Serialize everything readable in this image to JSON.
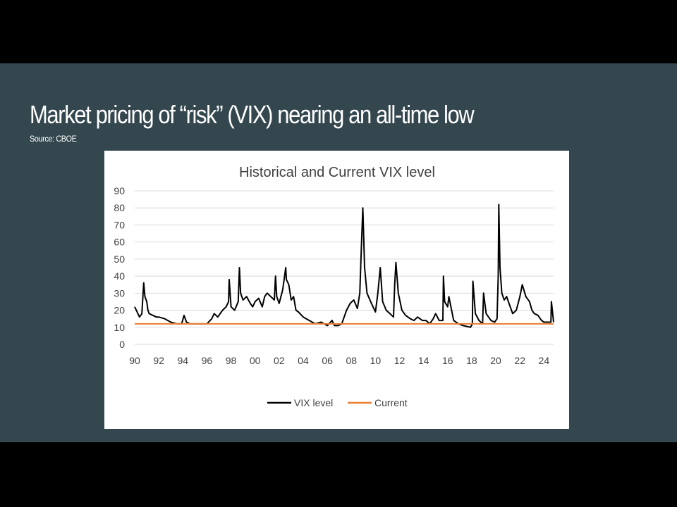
{
  "slide": {
    "title": "Market pricing of “risk” (VIX) nearing an all-time low",
    "source": "Source: CBOE"
  },
  "colors": {
    "background": "#34474f",
    "vix_line": "#000000",
    "current_line": "#ed7d31",
    "gridline": "#d9d9d9"
  },
  "chart_data": {
    "type": "line",
    "title": "Historical and Current VIX level",
    "xlabel": "",
    "ylabel": "",
    "ylim": [
      0,
      90
    ],
    "xlim": [
      1990,
      2024.8
    ],
    "yticks": [
      "0",
      "10",
      "20",
      "30",
      "40",
      "50",
      "60",
      "70",
      "80",
      "90"
    ],
    "xticks": [
      "90",
      "92",
      "94",
      "96",
      "98",
      "00",
      "02",
      "04",
      "06",
      "08",
      "10",
      "12",
      "14",
      "16",
      "18",
      "20",
      "22",
      "24"
    ],
    "grid": true,
    "legend": "bottom",
    "series": [
      {
        "name": "VIX level",
        "color": "#000000",
        "x": [
          1990.0,
          1990.2,
          1990.4,
          1990.6,
          1990.7,
          1990.75,
          1990.85,
          1991.0,
          1991.1,
          1991.2,
          1991.5,
          1991.8,
          1992.0,
          1992.5,
          1993.0,
          1993.5,
          1993.9,
          1994.1,
          1994.3,
          1994.6,
          1995.0,
          1995.5,
          1996.0,
          1996.4,
          1996.6,
          1996.9,
          1997.3,
          1997.6,
          1997.8,
          1997.85,
          1998.0,
          1998.3,
          1998.6,
          1998.7,
          1998.8,
          1999.0,
          1999.3,
          1999.6,
          1999.8,
          2000.0,
          2000.3,
          2000.6,
          2000.8,
          2001.0,
          2001.3,
          2001.6,
          2001.7,
          2001.8,
          2002.0,
          2002.3,
          2002.55,
          2002.6,
          2002.8,
          2003.0,
          2003.2,
          2003.4,
          2003.6,
          2004.0,
          2004.5,
          2005.0,
          2005.5,
          2006.0,
          2006.4,
          2006.6,
          2006.9,
          2007.2,
          2007.6,
          2007.9,
          2008.2,
          2008.5,
          2008.7,
          2008.85,
          2008.95,
          2009.1,
          2009.3,
          2009.6,
          2010.0,
          2010.2,
          2010.4,
          2010.6,
          2010.9,
          2011.2,
          2011.5,
          2011.6,
          2011.7,
          2011.9,
          2012.2,
          2012.5,
          2012.9,
          2013.2,
          2013.5,
          2013.9,
          2014.2,
          2014.5,
          2014.8,
          2015.0,
          2015.3,
          2015.6,
          2015.65,
          2015.75,
          2016.0,
          2016.1,
          2016.5,
          2016.9,
          2017.3,
          2017.9,
          2018.05,
          2018.1,
          2018.3,
          2018.6,
          2018.9,
          2018.98,
          2019.2,
          2019.6,
          2019.9,
          2020.1,
          2020.2,
          2020.25,
          2020.35,
          2020.5,
          2020.7,
          2020.9,
          2021.1,
          2021.4,
          2021.7,
          2022.0,
          2022.2,
          2022.5,
          2022.8,
          2023.0,
          2023.2,
          2023.5,
          2023.8,
          2024.0,
          2024.3,
          2024.58,
          2024.62,
          2024.8
        ],
        "values": [
          22,
          19,
          16,
          18,
          30,
          36,
          28,
          25,
          20,
          18,
          17,
          16,
          16,
          15,
          13,
          12,
          12,
          17,
          13,
          12,
          12,
          12,
          12,
          15,
          18,
          16,
          20,
          22,
          25,
          38,
          22,
          20,
          25,
          45,
          30,
          26,
          28,
          24,
          22,
          25,
          27,
          22,
          28,
          30,
          28,
          26,
          40,
          28,
          24,
          32,
          45,
          38,
          35,
          26,
          28,
          20,
          19,
          16,
          14,
          12,
          13,
          11,
          14,
          11,
          11,
          12,
          20,
          24,
          26,
          21,
          30,
          60,
          80,
          45,
          30,
          25,
          19,
          30,
          45,
          25,
          20,
          18,
          16,
          35,
          48,
          30,
          20,
          17,
          15,
          14,
          16,
          14,
          14,
          12,
          15,
          18,
          14,
          14,
          40,
          25,
          22,
          28,
          14,
          12,
          11,
          10,
          12,
          37,
          18,
          14,
          12,
          30,
          18,
          14,
          13,
          15,
          40,
          82,
          45,
          30,
          26,
          28,
          24,
          18,
          20,
          28,
          35,
          28,
          25,
          20,
          18,
          17,
          14,
          13,
          13,
          13,
          25,
          13
        ]
      },
      {
        "name": "Current",
        "color": "#ed7d31",
        "x": [
          1990.0,
          2024.8
        ],
        "values": [
          12,
          12
        ]
      }
    ]
  }
}
